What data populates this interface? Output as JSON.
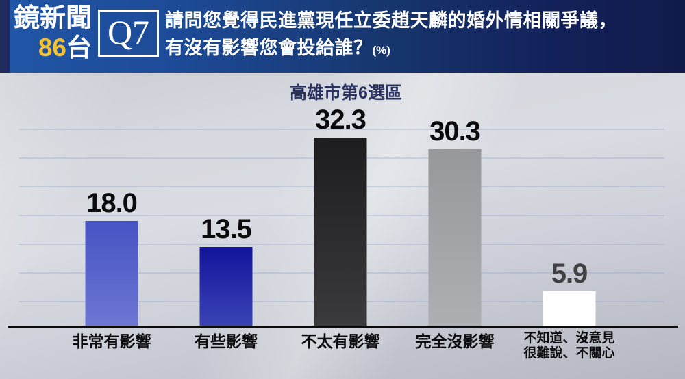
{
  "header": {
    "channel_name": "鏡新聞",
    "channel_number": "86",
    "channel_suffix": "台",
    "question_tag": "Q7",
    "question_line1": "請問您覺得民進黨現任立委趙天麟的婚外情相關爭議，",
    "question_line2": "有沒有影響您會投給誰？",
    "unit_note": "(%)"
  },
  "colors": {
    "header_gradient_left": "#2156a6",
    "header_gradient_right": "#111b4a",
    "channel_number_yellow": "#f3c233",
    "title_navy": "#2a3260",
    "baseline_black": "#0b0b0d"
  },
  "chart_data": {
    "type": "bar",
    "title": "高雄市第6選區",
    "categories": [
      "非常有影響",
      "有些影響",
      "不太有影響",
      "完全沒影響",
      "不知道、沒意見 很難說、不關心"
    ],
    "values": [
      18.0,
      13.5,
      32.3,
      30.3,
      5.9
    ],
    "xlabel": "",
    "ylabel": "",
    "unit": "%",
    "ylim": [
      0,
      35
    ],
    "grid": true,
    "gridline_interval": 5,
    "legend": "none",
    "bars": [
      {
        "label_lines": [
          "非常有影響"
        ],
        "value": 18.0,
        "display": "18.0",
        "color_top": "#4653c4",
        "color_bottom": "#6d77d3",
        "value_color": "#0b0b0d"
      },
      {
        "label_lines": [
          "有些影響"
        ],
        "value": 13.5,
        "display": "13.5",
        "color_top": "#12149c",
        "color_bottom": "#3a43b5",
        "value_color": "#0b0b0d"
      },
      {
        "label_lines": [
          "不太有影響"
        ],
        "value": 32.3,
        "display": "32.3",
        "color_top": "#1d1d1f",
        "color_bottom": "#3a3a3c",
        "value_color": "#0b0b0d"
      },
      {
        "label_lines": [
          "完全沒影響"
        ],
        "value": 30.3,
        "display": "30.3",
        "color_top": "#97989b",
        "color_bottom": "#aeafb3",
        "value_color": "#0b0b0d"
      },
      {
        "label_lines": [
          "不知道、沒意見",
          "很難說、不關心"
        ],
        "value": 5.9,
        "display": "5.9",
        "color_top": "#ffffff",
        "color_bottom": "#ffffff",
        "value_color": "#3f4042"
      }
    ]
  }
}
